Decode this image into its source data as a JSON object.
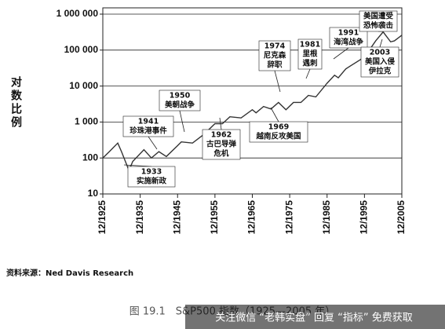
{
  "chart_data": {
    "type": "line",
    "y_label": "对数比例",
    "log_scale": true,
    "grid": true,
    "xlim": [
      1925,
      2005
    ],
    "ylim": [
      10,
      1000000
    ],
    "xticks": [
      {
        "value": 1925,
        "label": "12/1925"
      },
      {
        "value": 1935,
        "label": "12/1935"
      },
      {
        "value": 1945,
        "label": "12/1945"
      },
      {
        "value": 1955,
        "label": "12/1955"
      },
      {
        "value": 1965,
        "label": "12/1965"
      },
      {
        "value": 1975,
        "label": "12/1975"
      },
      {
        "value": 1985,
        "label": "12/1985"
      },
      {
        "value": 1995,
        "label": "12/1995"
      },
      {
        "value": 2005,
        "label": "12/2005"
      }
    ],
    "yticks": [
      {
        "value": 1000000,
        "label": "1 000 000"
      },
      {
        "value": 100000,
        "label": "100 000"
      },
      {
        "value": 10000,
        "label": "10 000"
      },
      {
        "value": 1000,
        "label": "1 000"
      },
      100,
      10
    ],
    "series": [
      {
        "name": "S&P500",
        "color": "#333333",
        "x": [
          1925,
          1927,
          1929,
          1930,
          1932,
          1933,
          1936,
          1938,
          1940,
          1942,
          1945,
          1946,
          1949,
          1952,
          1955,
          1957,
          1959,
          1962,
          1965,
          1966,
          1968,
          1970,
          1972,
          1974,
          1976,
          1978,
          1980,
          1982,
          1985,
          1987,
          1988,
          1990,
          1991,
          1994,
          1996,
          1998,
          2000,
          2002,
          2003,
          2005
        ],
        "values": [
          100,
          160,
          260,
          150,
          45,
          80,
          170,
          100,
          150,
          110,
          220,
          280,
          260,
          450,
          900,
          900,
          1400,
          1300,
          2200,
          1800,
          2700,
          2300,
          3500,
          2200,
          3500,
          3500,
          5500,
          5000,
          12000,
          20000,
          17000,
          30000,
          35000,
          55000,
          90000,
          180000,
          320000,
          170000,
          180000,
          260000
        ]
      }
    ],
    "annotations": [
      [
        "1933",
        "实施新政"
      ],
      [
        "1941",
        "珍珠港事件"
      ],
      [
        "1950",
        "美朝战争"
      ],
      [
        "1962",
        "古巴导弹",
        "危机"
      ],
      [
        "1969",
        "越南反攻美国"
      ],
      [
        "1974",
        "尼克森",
        "辞职"
      ],
      [
        "1981",
        "里根",
        "遇刺"
      ],
      [
        "1991",
        "海湾战争"
      ],
      [
        "美国遭受",
        "恐怖袭击"
      ],
      [
        "2003",
        "美国入侵",
        "伊拉克"
      ]
    ],
    "source": "资料来源：Ned Davis Research",
    "caption": "图 19.1　S&P500 指数（1925—2005 年）",
    "watermark": "关注微信 “老韩实盘” 回复 “指标” 免费获取"
  }
}
